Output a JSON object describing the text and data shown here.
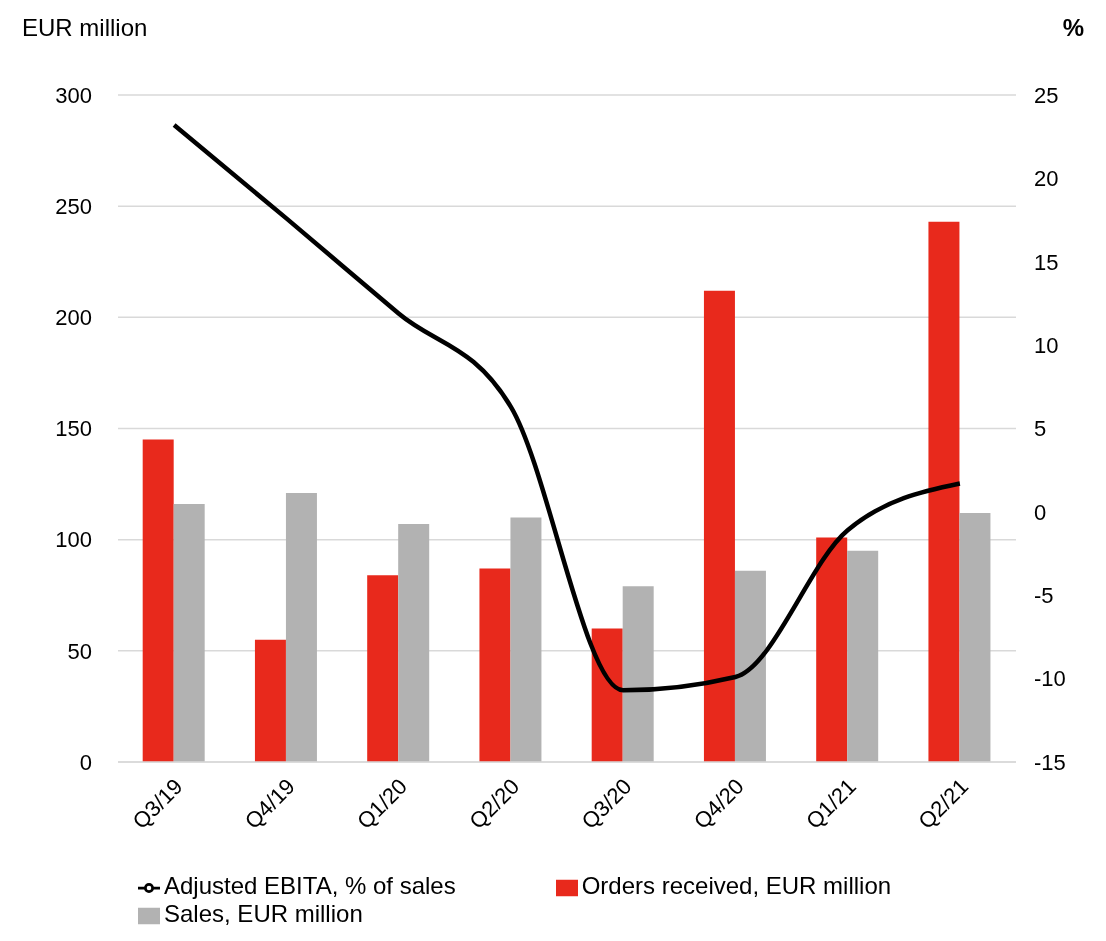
{
  "chart_data": {
    "type": "bar",
    "ylabel": "EUR million",
    "y2label": "%",
    "categories": [
      "Q3/19",
      "Q4/19",
      "Q1/20",
      "Q2/20",
      "Q3/20",
      "Q4/20",
      "Q1/21",
      "Q2/21"
    ],
    "series": [
      {
        "name": "Orders received, EUR million",
        "color": "#e8291c",
        "values": [
          145,
          55,
          84,
          87,
          60,
          212,
          101,
          243
        ]
      },
      {
        "name": "Sales, EUR million",
        "color": "#b2b2b2",
        "values": [
          116,
          121,
          107,
          110,
          79,
          86,
          95,
          112
        ]
      },
      {
        "name": "Adjusted EBITA, % of sales",
        "type": "line",
        "axis": "y2",
        "color": "#000000",
        "values": [
          23.2,
          17.6,
          11.9,
          6.3,
          -10.7,
          -9.9,
          -1.1,
          1.7
        ]
      }
    ],
    "ylim": [
      0,
      300
    ],
    "yticks": [
      0,
      50,
      100,
      150,
      200,
      250,
      300
    ],
    "y2lim": [
      -15,
      25
    ],
    "y2ticks": [
      -15,
      -10,
      -5,
      0,
      5,
      10,
      15,
      20,
      25
    ],
    "grid": "y",
    "legend": "bottom",
    "marker": "none"
  }
}
